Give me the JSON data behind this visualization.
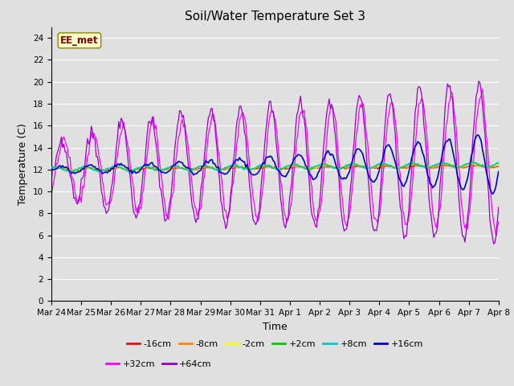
{
  "title": "Soil/Water Temperature Set 3",
  "xlabel": "Time",
  "ylabel": "Temperature (C)",
  "ylim": [
    0,
    25
  ],
  "yticks": [
    0,
    2,
    4,
    6,
    8,
    10,
    12,
    14,
    16,
    18,
    20,
    22,
    24
  ],
  "bg_color": "#e0e0e0",
  "watermark": "EE_met",
  "watermark_fgcolor": "#880000",
  "watermark_bgcolor": "#ffffcc",
  "watermark_edgecolor": "#888800",
  "xtick_labels": [
    "Mar 24",
    "Mar 25",
    "Mar 26",
    "Mar 27",
    "Mar 28",
    "Mar 29",
    "Mar 30",
    "Mar 31",
    "Apr 1",
    "Apr 2",
    "Apr 3",
    "Apr 4",
    "Apr 5",
    "Apr 6",
    "Apr 7",
    "Apr 8"
  ],
  "series_colors": {
    "-16cm": "#ff0000",
    "-8cm": "#ff8800",
    "-2cm": "#ffff00",
    "+2cm": "#00cc00",
    "+8cm": "#00cccc",
    "+16cm": "#0000cc",
    "+32cm": "#ff00ff",
    "+64cm": "#9900cc"
  },
  "legend_row1": [
    [
      "-16cm",
      "#ff0000"
    ],
    [
      "-8cm",
      "#ff8800"
    ],
    [
      "-2cm",
      "#ffff00"
    ],
    [
      "+2cm",
      "#00cc00"
    ],
    [
      "+8cm",
      "#00cccc"
    ],
    [
      "+16cm",
      "#0000cc"
    ]
  ],
  "legend_row2": [
    [
      "+32cm",
      "#ff00ff"
    ],
    [
      "+64cm",
      "#9900cc"
    ]
  ]
}
